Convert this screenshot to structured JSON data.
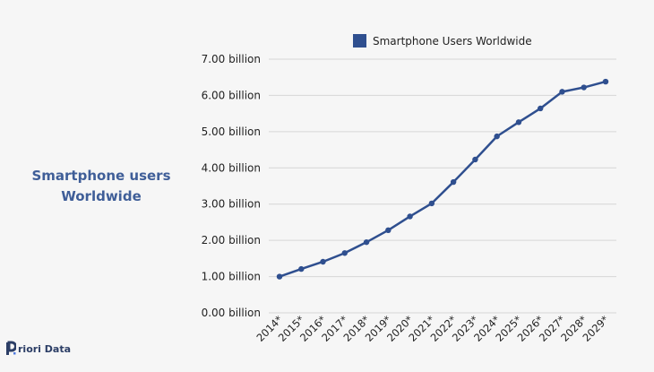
{
  "side_title": {
    "line1": "Smartphone users",
    "line2": "Worldwide"
  },
  "logo": {
    "icon": "priori-data-logo-icon",
    "text": "riori Data"
  },
  "colors": {
    "series": "#2f4f8f",
    "grid": "#d6d6d6",
    "title": "#3f5e98"
  },
  "chart_data": {
    "type": "line",
    "x": [
      "2014*",
      "2015*",
      "2016*",
      "2017*",
      "2018*",
      "2019*",
      "2020*",
      "2021*",
      "2022*",
      "2023*",
      "2024*",
      "2025*",
      "2026*",
      "2027*",
      "2028*",
      "2029*"
    ],
    "series": [
      {
        "name": "Smartphone Users Worldwide",
        "values": [
          1.0,
          1.21,
          1.41,
          1.65,
          1.95,
          2.28,
          2.66,
          3.02,
          3.61,
          4.23,
          4.87,
          5.26,
          5.64,
          6.1,
          6.22,
          6.38
        ]
      }
    ],
    "ylim": [
      0,
      7
    ],
    "yticks": [
      0,
      1,
      2,
      3,
      4,
      5,
      6,
      7
    ],
    "ytick_labels": [
      "0.00 billion",
      "1.00 billion",
      "2.00 billion",
      "3.00 billion",
      "4.00 billion",
      "5.00 billion",
      "6.00 billion",
      "7.00 billion"
    ],
    "grid": true,
    "legend": "top-center",
    "title": "",
    "xlabel": "",
    "ylabel": ""
  }
}
